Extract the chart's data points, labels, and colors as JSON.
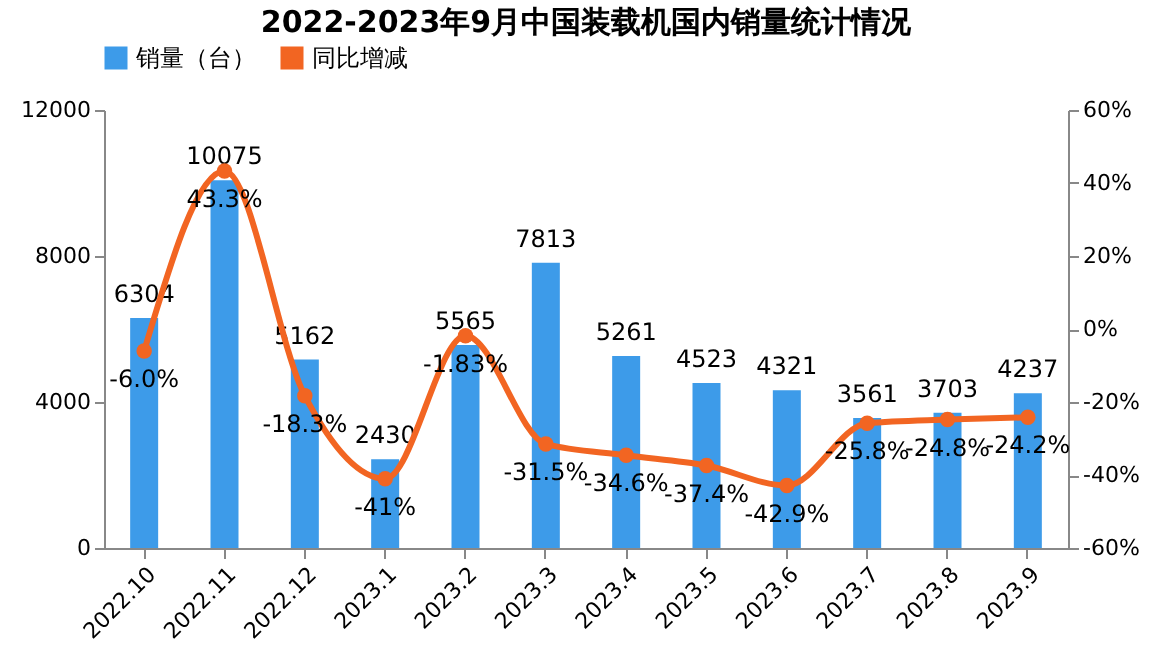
{
  "chart_data": {
    "type": "bar",
    "title": "2022-2023年9月中国装载机国内销量统计情况",
    "categories": [
      "2022.10",
      "2022.11",
      "2022.12",
      "2023.1",
      "2023.2",
      "2023.3",
      "2023.4",
      "2023.5",
      "2023.6",
      "2023.7",
      "2023.8",
      "2023.9"
    ],
    "series": [
      {
        "name": "销量（台）",
        "type": "bar",
        "color": "#3d9be9",
        "values": [
          6304,
          10075,
          5162,
          2430,
          5565,
          7813,
          5261,
          4523,
          4321,
          3561,
          3703,
          4237
        ]
      },
      {
        "name": "同比增减",
        "type": "line",
        "axis": "y2",
        "color": "#f26522",
        "values": [
          -6.0,
          43.3,
          -18.3,
          -41,
          -1.83,
          -31.5,
          -34.6,
          -37.4,
          -42.9,
          -25.8,
          -24.8,
          -24.2
        ],
        "value_labels": [
          "-6.0%",
          "43.3%",
          "-18.3%",
          "-41%",
          "-1.83%",
          "-31.5%",
          "-34.6%",
          "-37.4%",
          "-42.9%",
          "-25.8%",
          "-24.8%",
          "-24.2%"
        ]
      }
    ],
    "ylim": [
      0,
      12000
    ],
    "yticks": [
      0,
      4000,
      8000,
      12000
    ],
    "y2lim": [
      -60,
      60
    ],
    "y2ticks": [
      {
        "value": -60,
        "label": "-60%"
      },
      {
        "value": -40,
        "label": "-40%"
      },
      {
        "value": -20,
        "label": "-20%"
      },
      {
        "value": 0,
        "label": "0%"
      },
      {
        "value": 20,
        "label": "20%"
      },
      {
        "value": 40,
        "label": "40%"
      },
      {
        "value": 60,
        "label": "60%"
      }
    ],
    "data_labels": true,
    "marker": "circle",
    "legend": "top",
    "grid": false
  }
}
